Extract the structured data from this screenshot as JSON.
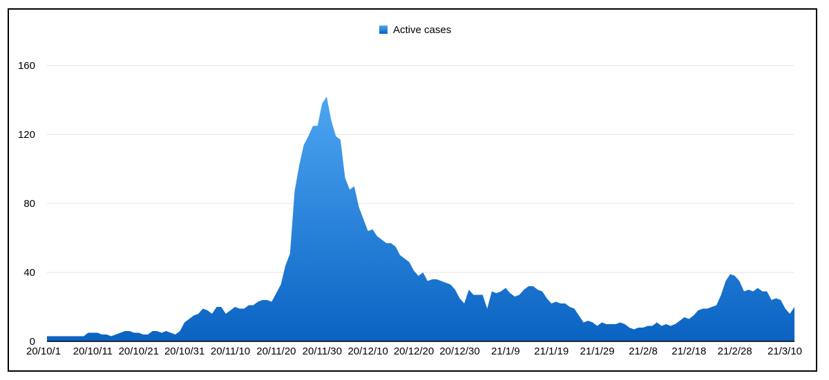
{
  "chart_data": {
    "type": "area",
    "legend": {
      "position": "top-center",
      "label": "Active cases"
    },
    "colors": {
      "area_top": "#4da6f2",
      "area_bottom": "#0a63c2",
      "grid": "#e3e3e3",
      "axis": "#000000"
    },
    "ylim": [
      0,
      160
    ],
    "y_ticks": [
      "0",
      "40",
      "80",
      "120",
      "160"
    ],
    "x_start_label": "20/10/1",
    "x_tick_labels": [
      "20/10/1",
      "20/10/11",
      "20/10/21",
      "20/10/31",
      "20/11/10",
      "20/11/20",
      "20/11/30",
      "20/12/10",
      "20/12/20",
      "20/12/30",
      "21/1/9",
      "21/1/19",
      "21/1/29",
      "21/2/8",
      "21/2/18",
      "21/2/28",
      "21/3/10"
    ],
    "grid": true,
    "series": [
      {
        "name": "Active cases",
        "values": [
          3,
          3,
          3,
          3,
          3,
          3,
          3,
          3,
          3,
          5,
          5,
          5,
          4,
          4,
          3,
          4,
          5,
          6,
          6,
          5,
          5,
          4,
          4,
          6,
          6,
          5,
          6,
          5,
          4,
          6,
          11,
          13,
          15,
          16,
          19,
          18,
          16,
          20,
          20,
          16,
          18,
          20,
          19,
          19,
          21,
          21,
          23,
          24,
          24,
          23,
          28,
          33,
          44,
          51,
          87,
          102,
          114,
          119,
          125,
          125,
          138,
          142,
          128,
          119,
          117,
          95,
          88,
          90,
          78,
          71,
          64,
          65,
          61,
          59,
          57,
          57,
          55,
          50,
          48,
          46,
          41,
          38,
          40,
          35,
          36,
          36,
          35,
          34,
          33,
          30,
          25,
          22,
          30,
          27,
          27,
          27,
          19,
          29,
          28,
          29,
          31,
          28,
          26,
          27,
          30,
          32,
          32,
          30,
          29,
          25,
          22,
          23,
          22,
          22,
          20,
          19,
          15,
          11,
          12,
          11,
          9,
          11,
          10,
          10,
          10,
          11,
          10,
          8,
          7,
          8,
          8,
          9,
          9,
          11,
          9,
          10,
          9,
          10,
          12,
          14,
          13,
          15,
          18,
          19,
          19,
          20,
          21,
          27,
          35,
          39,
          38,
          35,
          29,
          30,
          29,
          31,
          29,
          29,
          24,
          25,
          24,
          19,
          16,
          20
        ]
      }
    ]
  }
}
